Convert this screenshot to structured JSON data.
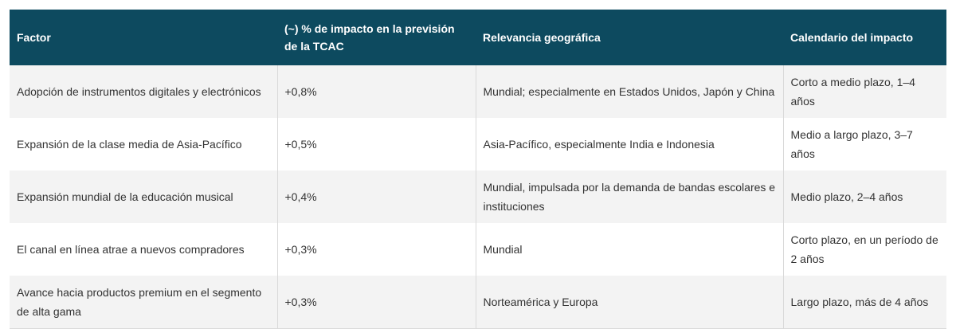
{
  "table": {
    "header": [
      "Factor",
      "(~) % de impacto en la previsión de la TCAC",
      "Relevancia geográfica",
      "Calendario del impacto"
    ],
    "rows": [
      [
        "Adopción de instrumentos digitales y electrónicos",
        "+0,8%",
        "Mundial; especialmente en Estados Unidos, Japón y China",
        "Corto a medio plazo, 1–4 años"
      ],
      [
        "Expansión de la clase media de Asia-Pacífico",
        "+0,5%",
        "Asia-Pacífico, especialmente India e Indonesia",
        "Medio a largo plazo, 3–7 años"
      ],
      [
        "Expansión mundial de la educación musical",
        "+0,4%",
        "Mundial, impulsada por la demanda de bandas escolares e instituciones",
        "Medio plazo, 2–4 años"
      ],
      [
        "El canal en línea atrae a nuevos compradores",
        "+0,3%",
        "Mundial",
        "Corto plazo, en un período de 2 años"
      ],
      [
        "Avance hacia productos premium en el segmento de alta gama",
        "+0,3%",
        "Norteamérica y Europa",
        "Largo plazo, más de 4 años"
      ]
    ]
  }
}
